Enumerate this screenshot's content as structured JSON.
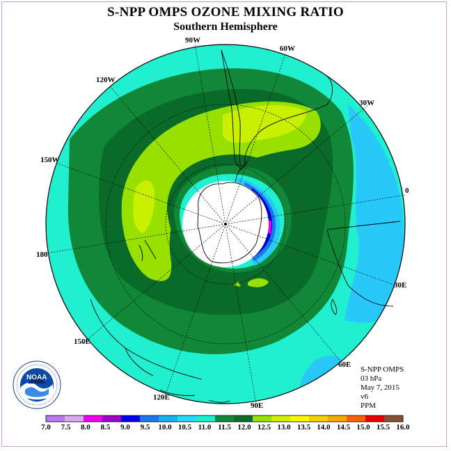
{
  "title": "S-NPP OMPS OZONE MIXING RATIO",
  "subtitle": "Southern Hemisphere",
  "longitude_labels": [
    "90W",
    "60W",
    "30W",
    "0",
    "30E",
    "60E",
    "90E",
    "120E",
    "150E",
    "180",
    "150W",
    "120W"
  ],
  "info": {
    "instrument": "S-NPP OMPS",
    "level": "03 hPa",
    "date": "May 7, 2015",
    "version": "v6",
    "units": "PPM"
  },
  "logo_text": "NOAA",
  "colorbar": {
    "ticks": [
      "7.0",
      "7.5",
      "8.0",
      "8.5",
      "9.0",
      "9.5",
      "10.0",
      "10.5",
      "11.0",
      "11.5",
      "12.0",
      "12.5",
      "13.0",
      "13.5",
      "14.0",
      "14.5",
      "15.0",
      "15.5",
      "16.0"
    ],
    "colors": [
      "#b878f0",
      "#d8a8f0",
      "#f000f0",
      "#a000c8",
      "#0000e8",
      "#1878f0",
      "#18b0f8",
      "#28d8f8",
      "#18f0d0",
      "#108838",
      "#087028",
      "#98e000",
      "#d0f000",
      "#f8f800",
      "#f8d000",
      "#f8a800",
      "#f86000",
      "#e80000",
      "#885030"
    ]
  },
  "colors": {
    "ocean_field": "#20f0d0",
    "band_11_5": "#108838",
    "band_12_0": "#0a6a2a",
    "band_12_5": "#98e000",
    "band_13_0": "#c8f000",
    "band_10_5": "#28d0f8",
    "polar_night": "#ffffff"
  }
}
